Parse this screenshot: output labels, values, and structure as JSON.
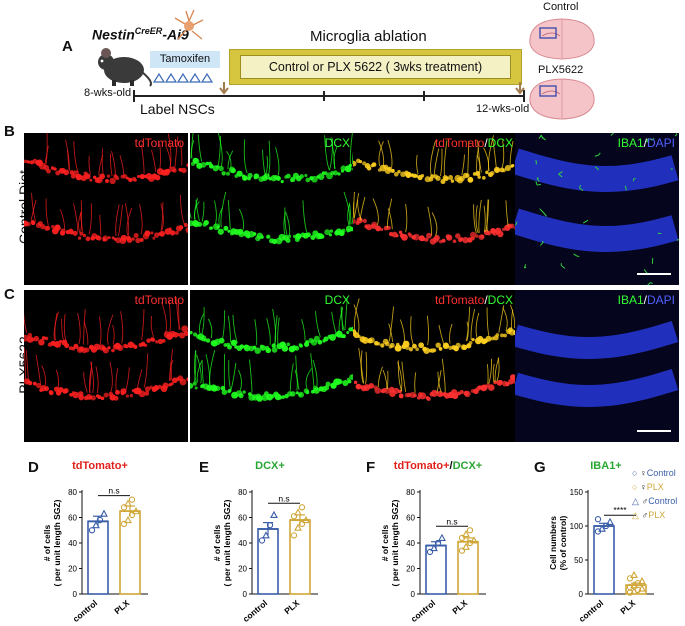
{
  "panel_letters": [
    "A",
    "B",
    "C",
    "D",
    "E",
    "F",
    "G"
  ],
  "schematic": {
    "mouse_line": "Nestin",
    "mouse_line_sup": "CreER",
    "mouse_line_suffix": "-Ai9",
    "tamoxifen": "Tamoxifen",
    "ablation_title": "Microglia ablation",
    "treatment": "Control or PLX 5622 ( 3wks treatment)",
    "start_age": "8-wks-old",
    "end_age": "12-wks-old",
    "label_nscs": "Label NSCs",
    "brain_labels": [
      "Control",
      "PLX5622"
    ]
  },
  "micrographs": {
    "rows": [
      "Control Diet",
      "PLX5622"
    ],
    "channels": [
      {
        "parts": [
          {
            "text": "tdTomato",
            "color": "#ff3030"
          }
        ]
      },
      {
        "parts": [
          {
            "text": "DCX",
            "color": "#33ff33"
          }
        ]
      },
      {
        "parts": [
          {
            "text": "tdTomato",
            "color": "#ff3030"
          },
          {
            "text": "/",
            "color": "#ffffff"
          },
          {
            "text": "DCX",
            "color": "#33ff33"
          }
        ]
      },
      {
        "parts": [
          {
            "text": "IBA1",
            "color": "#33ff33"
          },
          {
            "text": "/",
            "color": "#ffffff"
          },
          {
            "text": "DAPI",
            "color": "#5060ff"
          }
        ]
      }
    ]
  },
  "chart_data": [
    {
      "type": "bar",
      "panel": "D",
      "title": "tdTomato+",
      "title_color": "#e0211b",
      "ylabel": "# of cells",
      "ylabel2": "( per unit length SGZ)",
      "categories": [
        "control",
        "PLX"
      ],
      "values": [
        57,
        65
      ],
      "errors": [
        4,
        4
      ],
      "points": [
        [
          50,
          54,
          58,
          63
        ],
        [
          55,
          58,
          62,
          65,
          68,
          71,
          74
        ]
      ],
      "ylim": [
        0,
        80
      ],
      "yticks": [
        0,
        20,
        40,
        60,
        80
      ],
      "significance": "n.s"
    },
    {
      "type": "bar",
      "panel": "E",
      "title": "DCX+",
      "title_color": "#2aa632",
      "ylabel": "# of cells",
      "ylabel2": "( per unit length SGZ)",
      "categories": [
        "control",
        "PLX"
      ],
      "values": [
        51,
        58
      ],
      "errors": [
        5,
        4
      ],
      "points": [
        [
          42,
          46,
          54,
          62
        ],
        [
          46,
          52,
          55,
          58,
          61,
          64,
          68
        ]
      ],
      "ylim": [
        0,
        80
      ],
      "yticks": [
        0,
        20,
        40,
        60,
        80
      ],
      "significance": "n.s"
    },
    {
      "type": "bar",
      "panel": "F",
      "title_parts": [
        {
          "text": "tdTomato+",
          "color": "#e0211b"
        },
        {
          "text": "/",
          "color": "#111111"
        },
        {
          "text": "DCX+",
          "color": "#2aa632"
        }
      ],
      "ylabel": "# of cells",
      "ylabel2": "( per unit length SGZ)",
      "categories": [
        "control",
        "PLX"
      ],
      "values": [
        38,
        41
      ],
      "errors": [
        3,
        3
      ],
      "points": [
        [
          33,
          36,
          40,
          44
        ],
        [
          34,
          37,
          40,
          42,
          44,
          47,
          50
        ]
      ],
      "ylim": [
        0,
        80
      ],
      "yticks": [
        0,
        20,
        40,
        60,
        80
      ],
      "significance": "n.s"
    },
    {
      "type": "bar",
      "panel": "G",
      "title": "IBA1+",
      "title_color": "#2aa632",
      "ylabel": "Cell numbers",
      "ylabel2": "(% of control)",
      "categories": [
        "control",
        "PLX"
      ],
      "values": [
        100,
        13
      ],
      "errors": [
        4,
        3
      ],
      "points": [
        [
          92,
          96,
          100,
          106,
          110
        ],
        [
          2,
          4,
          6,
          8,
          10,
          13,
          16,
          19,
          23,
          28
        ]
      ],
      "ylim": [
        0,
        150
      ],
      "yticks": [
        0,
        50,
        100,
        150
      ],
      "significance": "****",
      "legend": [
        {
          "marker": "circle",
          "sex": "♀",
          "label": "Control",
          "color": "#3a5ea8"
        },
        {
          "marker": "circle",
          "sex": "♀",
          "label": "PLX",
          "color": "#cfa73a"
        },
        {
          "marker": "triangle",
          "sex": "♂",
          "label": "Control",
          "color": "#3a5ea8"
        },
        {
          "marker": "triangle",
          "sex": "♂",
          "label": "PLX",
          "color": "#cfa73a"
        }
      ]
    }
  ],
  "colors": {
    "control": "#3a5ea8",
    "plx": "#cfa73a"
  }
}
